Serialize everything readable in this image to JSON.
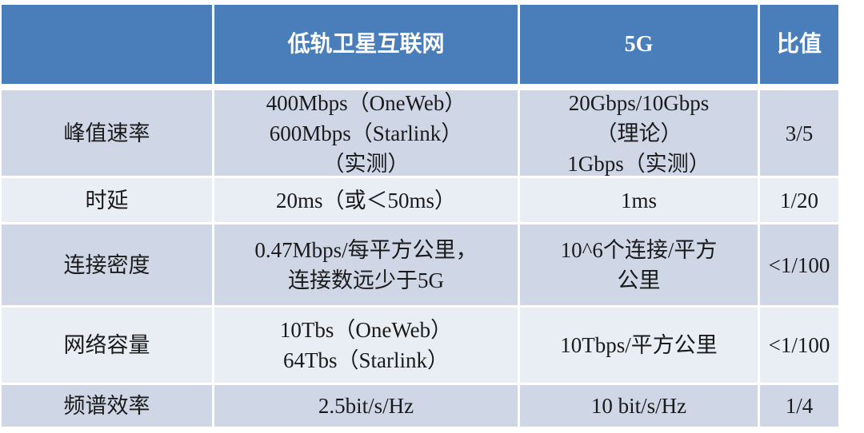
{
  "header": [
    "",
    "低轨卫星互联网",
    "5G",
    "比值"
  ],
  "rows": [
    {
      "metric": "峰值速率",
      "leo": "400Mbps（OneWeb）\n600Mbps（Starlink）\n（实测）",
      "fiveg": "20Gbps/10Gbps\n（理论）\n1Gbps（实测）",
      "ratio": "3/5"
    },
    {
      "metric": "时延",
      "leo": "20ms（或＜50ms）",
      "fiveg": "1ms",
      "ratio": "1/20"
    },
    {
      "metric": "连接密度",
      "leo": "0.47Mbps/每平方公里，\n连接数远少于5G",
      "fiveg": "10^6个连接/平方\n公里",
      "ratio": "<1/100"
    },
    {
      "metric": "网络容量",
      "leo": "10Tbs（OneWeb）\n64Tbs（Starlink）",
      "fiveg": "10Tbps/平方公里",
      "ratio": "<1/100"
    },
    {
      "metric": "频谱效率",
      "leo": "2.5bit/s/Hz",
      "fiveg": "10 bit/s/Hz",
      "ratio": "1/4"
    }
  ],
  "colors": {
    "header": "#4a7ebb",
    "row_dark": "#cfd7e6",
    "row_light": "#e9edf4"
  }
}
